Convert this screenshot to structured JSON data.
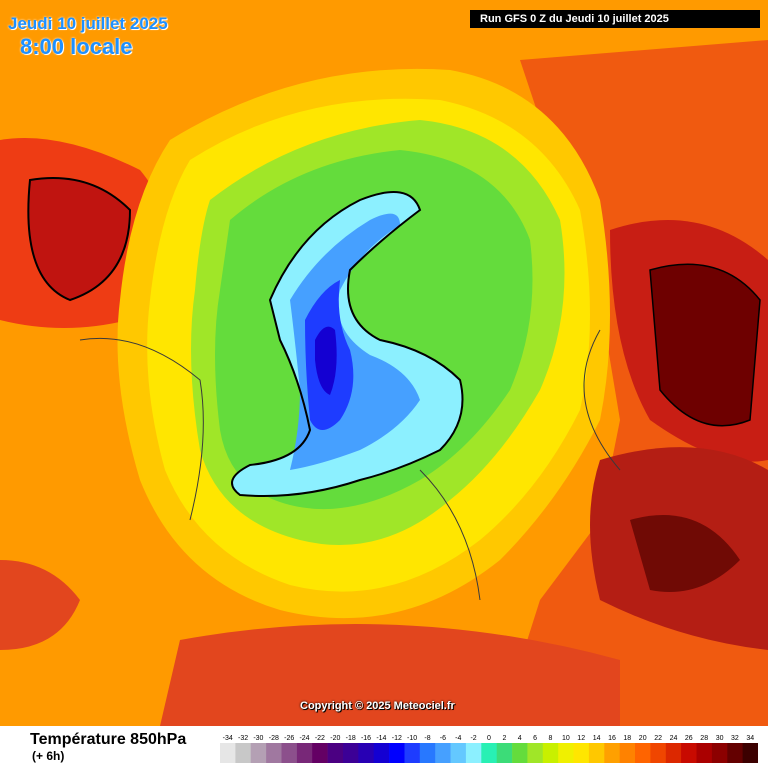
{
  "header": {
    "date": "Jeudi 10 juillet 2025",
    "time": "8:00 locale",
    "run": "Run GFS 0 Z du Jeudi 10 juillet 2025"
  },
  "footer": {
    "variable": "Température 850hPa",
    "offset": "(+ 6h)",
    "copyright": "Copyright © 2025 Meteociel.fr"
  },
  "legend": {
    "ticks": [
      "-34",
      "-32",
      "-30",
      "-28",
      "-26",
      "-24",
      "-22",
      "-20",
      "-18",
      "-16",
      "-14",
      "-12",
      "-10",
      "-8",
      "-6",
      "-4",
      "-2",
      "0",
      "2",
      "4",
      "6",
      "8",
      "10",
      "12",
      "14",
      "16",
      "18",
      "20",
      "22",
      "24",
      "26",
      "28",
      "30",
      "32",
      "34"
    ],
    "colors": [
      "#e6e6e6",
      "#c8c8c8",
      "#b4a0b4",
      "#a078a0",
      "#8c508c",
      "#782878",
      "#640064",
      "#4b0082",
      "#3c0096",
      "#2800b4",
      "#1400d2",
      "#0000ff",
      "#1e3cff",
      "#2878ff",
      "#46a0ff",
      "#64c8ff",
      "#8cf0ff",
      "#28f0b4",
      "#3cdc78",
      "#64dc3c",
      "#a0e628",
      "#c8f000",
      "#f0f000",
      "#ffe600",
      "#ffc800",
      "#ffa000",
      "#ff8200",
      "#ff6400",
      "#f04600",
      "#dc2800",
      "#c80a00",
      "#aa0000",
      "#8c0000",
      "#640000",
      "#3c0000"
    ]
  }
}
